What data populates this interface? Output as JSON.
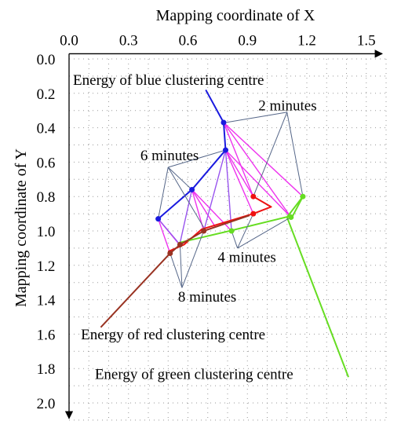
{
  "chart_data": {
    "type": "line",
    "xlabel": "Mapping coordinate of X",
    "ylabel": "Mapping coordinate of  Y",
    "x_tick_labels": [
      "0.0",
      "0.3",
      "0.6",
      "0.9",
      "1.2",
      "1.5"
    ],
    "y_tick_labels": [
      "0.0",
      "0.2",
      "0.4",
      "0.6",
      "0.8",
      "1.0",
      "1.2",
      "1.4",
      "1.6",
      "1.8",
      "2.0"
    ],
    "xlim": [
      0,
      1.6
    ],
    "ylim": [
      0,
      2.1
    ],
    "y_inverted": true,
    "x_axis_position": "top",
    "grid": "dotted",
    "colors": {
      "blue": "#1a1adf",
      "red": "#ee1111",
      "green": "#66dd22",
      "brown": "#993322",
      "magenta": "#ee33ee",
      "violet": "#9955ee",
      "annotation": "#556688",
      "grid": "#999999"
    },
    "series": [
      {
        "color_key": "blue",
        "x": [
          0.69,
          0.78,
          0.79,
          0.62,
          0.45
        ],
        "y": [
          0.18,
          0.37,
          0.53,
          0.76,
          0.93
        ]
      },
      {
        "color_key": "red",
        "x": [
          0.93,
          1.02,
          0.93,
          0.67,
          0.58,
          0.5
        ],
        "y": [
          0.8,
          0.86,
          0.9,
          0.99,
          1.08,
          1.12
        ]
      },
      {
        "color_key": "green",
        "x": [
          1.41,
          1.1,
          1.18,
          1.13,
          0.81,
          0.55
        ],
        "y": [
          1.85,
          0.92,
          0.8,
          0.91,
          1.0,
          1.07
        ]
      },
      {
        "color_key": "brown",
        "x": [
          0.16,
          0.51,
          0.56,
          0.68,
          0.91
        ],
        "y": [
          1.56,
          1.13,
          1.08,
          1.0,
          0.91
        ]
      }
    ],
    "lines_magenta": [
      [
        [
          0.78,
          0.37
        ],
        [
          1.18,
          0.8
        ]
      ],
      [
        [
          0.78,
          0.37
        ],
        [
          0.93,
          0.8
        ]
      ],
      [
        [
          0.78,
          0.37
        ],
        [
          1.12,
          0.92
        ]
      ],
      [
        [
          0.79,
          0.53
        ],
        [
          0.93,
          0.8
        ]
      ],
      [
        [
          0.79,
          0.53
        ],
        [
          0.93,
          0.9
        ]
      ],
      [
        [
          0.79,
          0.53
        ],
        [
          1.12,
          0.92
        ]
      ],
      [
        [
          0.62,
          0.76
        ],
        [
          0.68,
          1.0
        ]
      ],
      [
        [
          0.62,
          0.76
        ],
        [
          0.82,
          1.0
        ]
      ],
      [
        [
          0.62,
          0.76
        ],
        [
          0.74,
          0.98
        ]
      ],
      [
        [
          0.45,
          0.93
        ],
        [
          0.51,
          1.13
        ]
      ],
      [
        [
          0.45,
          0.93
        ],
        [
          0.56,
          1.08
        ]
      ],
      [
        [
          0.45,
          0.93
        ],
        [
          0.55,
          1.07
        ]
      ]
    ],
    "lines_violet": [
      [
        [
          0.62,
          0.76
        ],
        [
          0.56,
          1.07
        ]
      ],
      [
        [
          0.79,
          0.53
        ],
        [
          0.68,
          1.0
        ]
      ],
      [
        [
          0.79,
          0.53
        ],
        [
          0.82,
          1.0
        ]
      ],
      [
        [
          0.45,
          0.93
        ],
        [
          0.56,
          1.08
        ]
      ]
    ],
    "markers": [
      {
        "x": 0.78,
        "y": 0.37,
        "color_key": "blue"
      },
      {
        "x": 0.79,
        "y": 0.53,
        "color_key": "blue"
      },
      {
        "x": 0.62,
        "y": 0.76,
        "color_key": "blue"
      },
      {
        "x": 0.45,
        "y": 0.93,
        "color_key": "blue"
      },
      {
        "x": 0.93,
        "y": 0.8,
        "color_key": "red"
      },
      {
        "x": 0.93,
        "y": 0.9,
        "color_key": "red"
      },
      {
        "x": 1.18,
        "y": 0.8,
        "color_key": "green"
      },
      {
        "x": 1.12,
        "y": 0.92,
        "color_key": "green"
      },
      {
        "x": 0.82,
        "y": 1.0,
        "color_key": "green"
      },
      {
        "x": 0.68,
        "y": 1.0,
        "color_key": "brown"
      },
      {
        "x": 0.56,
        "y": 1.08,
        "color_key": "brown"
      },
      {
        "x": 0.51,
        "y": 1.13,
        "color_key": "brown"
      }
    ],
    "annotations": [
      {
        "text": "Energy of blue clustering centre",
        "x": 0.02,
        "y": 0.15,
        "anchor": "start"
      },
      {
        "text": "2 minutes",
        "x": 1.25,
        "y": 0.3,
        "anchor": "end"
      },
      {
        "text": "6 minutes",
        "x": 0.36,
        "y": 0.59,
        "anchor": "start"
      },
      {
        "text": "4 minutes",
        "x": 0.75,
        "y": 1.18,
        "anchor": "start"
      },
      {
        "text": "8 minutes",
        "x": 0.55,
        "y": 1.41,
        "anchor": "start"
      },
      {
        "text": "Energy of red clustering centre",
        "x": 0.06,
        "y": 1.63,
        "anchor": "start"
      },
      {
        "text": "Energy of green clustering centre",
        "x": 0.13,
        "y": 1.86,
        "anchor": "start"
      }
    ],
    "pointers": [
      [
        [
          1.1,
          0.31
        ],
        [
          0.79,
          0.37
        ]
      ],
      [
        [
          1.1,
          0.31
        ],
        [
          0.93,
          0.8
        ]
      ],
      [
        [
          1.1,
          0.31
        ],
        [
          1.18,
          0.8
        ]
      ],
      [
        [
          0.5,
          0.63
        ],
        [
          0.79,
          0.53
        ]
      ],
      [
        [
          0.5,
          0.63
        ],
        [
          0.62,
          0.76
        ]
      ],
      [
        [
          0.5,
          0.63
        ],
        [
          0.68,
          0.98
        ]
      ],
      [
        [
          0.5,
          0.63
        ],
        [
          0.45,
          0.93
        ]
      ],
      [
        [
          0.85,
          1.1
        ],
        [
          0.93,
          0.9
        ]
      ],
      [
        [
          0.85,
          1.1
        ],
        [
          1.12,
          0.92
        ]
      ],
      [
        [
          0.85,
          1.1
        ],
        [
          0.82,
          1.0
        ]
      ],
      [
        [
          0.57,
          1.33
        ],
        [
          0.51,
          1.13
        ]
      ],
      [
        [
          0.57,
          1.33
        ],
        [
          0.56,
          1.08
        ]
      ],
      [
        [
          0.57,
          1.33
        ],
        [
          0.68,
          1.0
        ]
      ]
    ]
  }
}
